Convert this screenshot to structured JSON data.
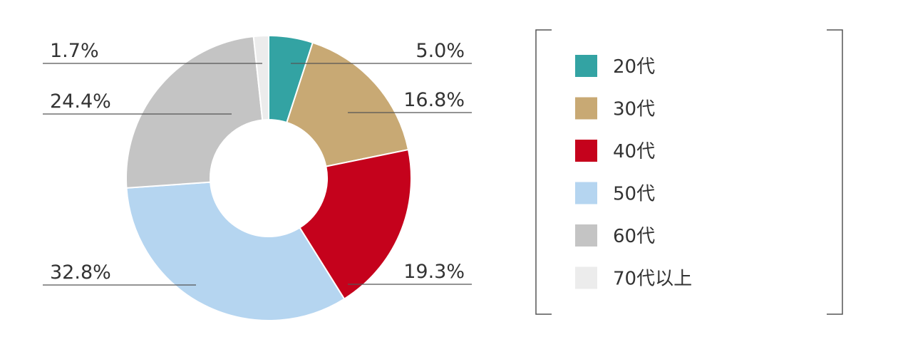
{
  "chart_data": {
    "type": "pie",
    "variant": "donut",
    "categories": [
      "20代",
      "30代",
      "40代",
      "50代",
      "60代",
      "70代以上"
    ],
    "values": [
      5.0,
      16.8,
      19.3,
      32.8,
      24.4,
      1.7
    ],
    "value_labels": [
      "5.0%",
      "16.8%",
      "19.3%",
      "32.8%",
      "24.4%",
      "1.7%"
    ],
    "colors": [
      "#33a3a3",
      "#c8a974",
      "#c5021c",
      "#b5d5f0",
      "#c4c4c4",
      "#ececec"
    ],
    "title": "",
    "legend_position": "right"
  }
}
